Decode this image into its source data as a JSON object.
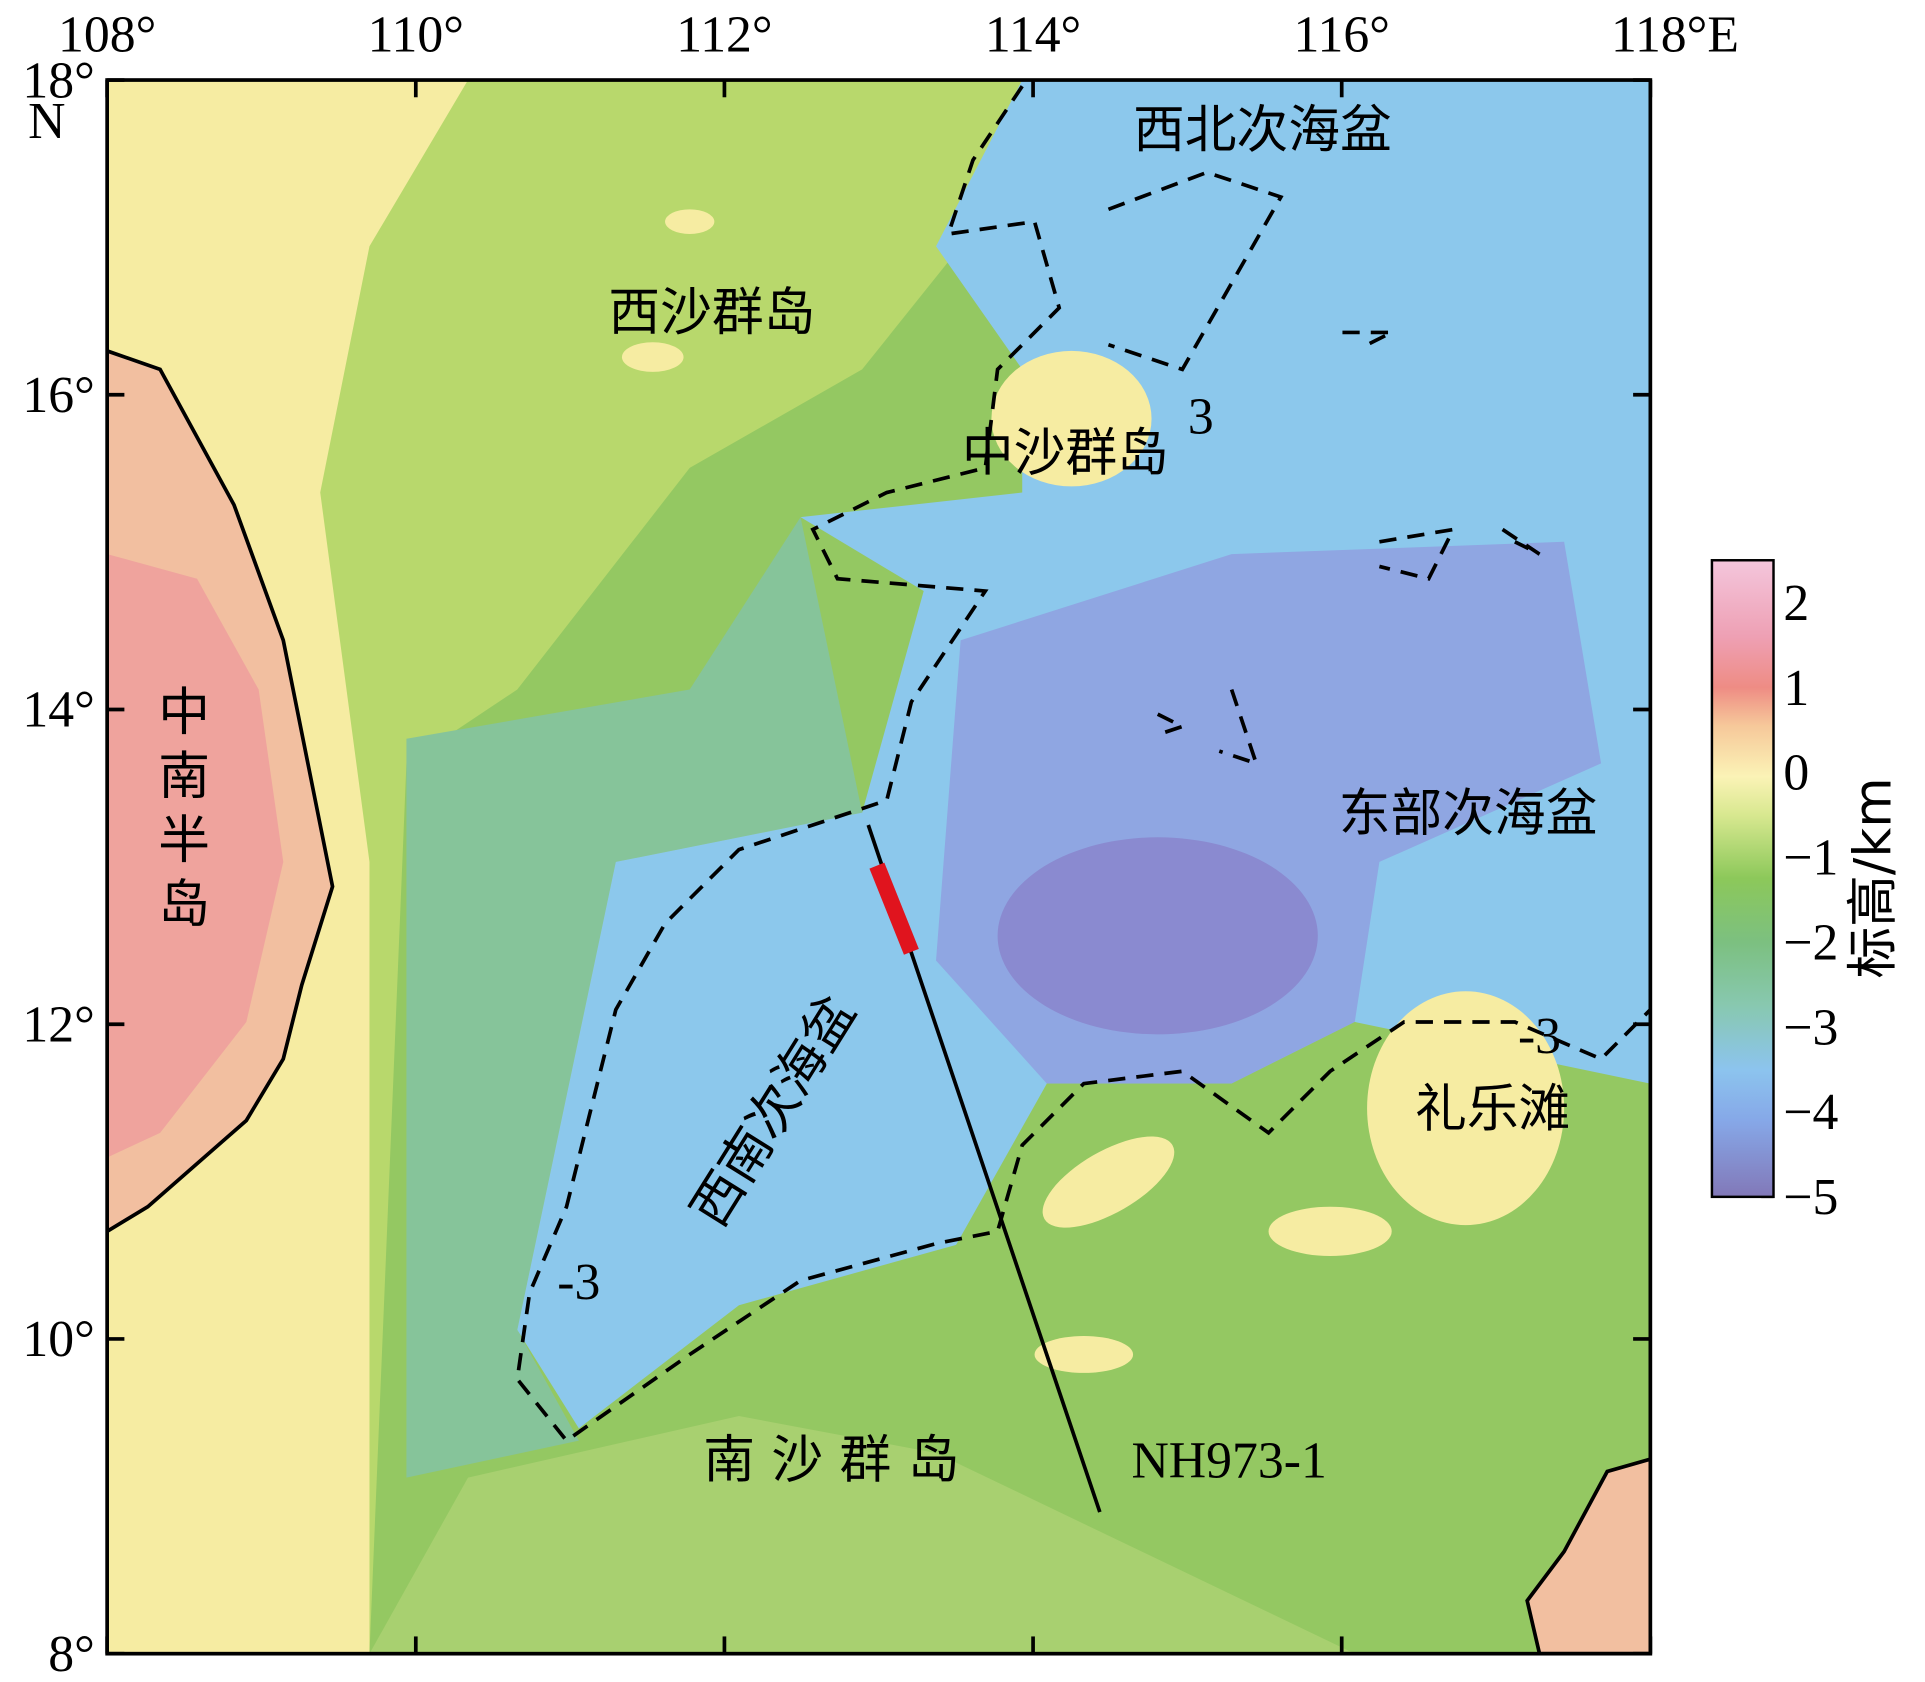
{
  "map": {
    "lon_ticks": [
      {
        "value": 108,
        "label": "108°"
      },
      {
        "value": 110,
        "label": "110°"
      },
      {
        "value": 112,
        "label": "112°"
      },
      {
        "value": 114,
        "label": "114°"
      },
      {
        "value": 116,
        "label": "116°"
      },
      {
        "value": 118,
        "label": "118°E"
      }
    ],
    "lat_ticks": [
      {
        "value": 18,
        "label": "18°"
      },
      {
        "value": 16,
        "label": "16°"
      },
      {
        "value": 14,
        "label": "14°"
      },
      {
        "value": 12,
        "label": "12°"
      },
      {
        "value": 10,
        "label": "10°"
      },
      {
        "value": 8,
        "label": "8°"
      }
    ],
    "lat_unit": "N",
    "places": [
      "西北次海盆",
      "西沙群岛",
      "中沙群岛",
      "东部次海盆",
      "中南半岛",
      "西南次海盆",
      "礼乐滩",
      "南 沙 群 岛"
    ],
    "contour_labels": [
      "3",
      "-3",
      "-3"
    ],
    "profile": "NH973-1",
    "colorbar": {
      "label": "标高/km",
      "clim": [
        -5,
        2.5
      ],
      "ticks": [
        2,
        1,
        0,
        {
          "value": -1,
          "label": "−1"
        },
        {
          "value": -2,
          "label": "−2"
        },
        {
          "value": -3,
          "label": "−3"
        },
        {
          "value": -4,
          "label": "−4"
        },
        {
          "value": -5,
          "label": "−5"
        }
      ]
    }
  }
}
